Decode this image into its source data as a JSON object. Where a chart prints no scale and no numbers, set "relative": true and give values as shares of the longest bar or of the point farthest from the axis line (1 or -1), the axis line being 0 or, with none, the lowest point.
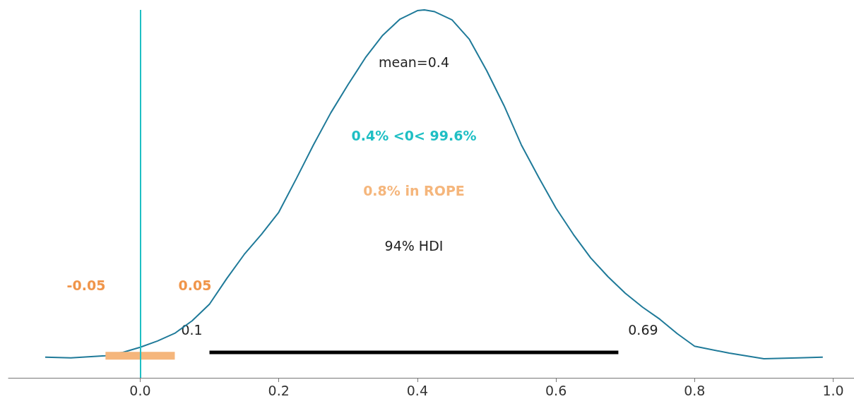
{
  "chart_data": {
    "type": "line",
    "relative": true,
    "marker": "none",
    "xlim": [
      -0.19,
      1.03
    ],
    "xticks": [
      {
        "value": 0,
        "label": "0.0"
      },
      {
        "value": 0.2,
        "label": "0.2"
      },
      {
        "value": 0.4,
        "label": "0.4"
      },
      {
        "value": 0.6,
        "label": "0.6"
      },
      {
        "value": 0.8,
        "label": "0.8"
      },
      {
        "value": 1,
        "label": "1.0"
      }
    ],
    "series": [
      {
        "color": "#1f7a99",
        "x": [
          -0.137,
          -0.1,
          -0.05,
          -0.025,
          0,
          0.025,
          0.05,
          0.075,
          0.1,
          0.125,
          0.15,
          0.175,
          0.2,
          0.225,
          0.25,
          0.275,
          0.3,
          0.325,
          0.35,
          0.375,
          0.4,
          0.41,
          0.425,
          0.45,
          0.475,
          0.5,
          0.525,
          0.55,
          0.575,
          0.6,
          0.625,
          0.65,
          0.675,
          0.7,
          0.725,
          0.75,
          0.775,
          0.8,
          0.85,
          0.9,
          0.95,
          0.985
        ],
        "values": [
          0.056,
          0.054,
          0.06,
          0.069,
          0.083,
          0.1,
          0.121,
          0.155,
          0.2,
          0.27,
          0.335,
          0.39,
          0.45,
          0.54,
          0.633,
          0.72,
          0.797,
          0.87,
          0.931,
          0.975,
          0.998,
          1,
          0.995,
          0.973,
          0.92,
          0.835,
          0.74,
          0.633,
          0.545,
          0.461,
          0.39,
          0.326,
          0.275,
          0.23,
          0.192,
          0.159,
          0.12,
          0.086,
          0.067,
          0.052,
          0.054,
          0.056
        ]
      },
      {
        "name": "0.8% in ROPE",
        "color": "#f5b67c",
        "x": [
          -0.05,
          0.05
        ],
        "values": [
          0.06,
          0.06
        ]
      },
      {
        "name": "94% HDI",
        "color": "#000000",
        "x": [
          0.1,
          0.69
        ],
        "values": [
          0.069,
          0.069
        ]
      }
    ],
    "ref_lines": [
      {
        "axis": "x",
        "value": 0,
        "label": "0.4% <0< 99.6%",
        "color": "#1fbfc4"
      }
    ],
    "annotations": [
      "mean=0.4",
      "-0.05",
      "0.05",
      {
        "text": "0.1",
        "x": 0.1,
        "y": 0.069
      },
      {
        "text": "0.69",
        "x": 0.69,
        "y": 0.069
      }
    ]
  }
}
